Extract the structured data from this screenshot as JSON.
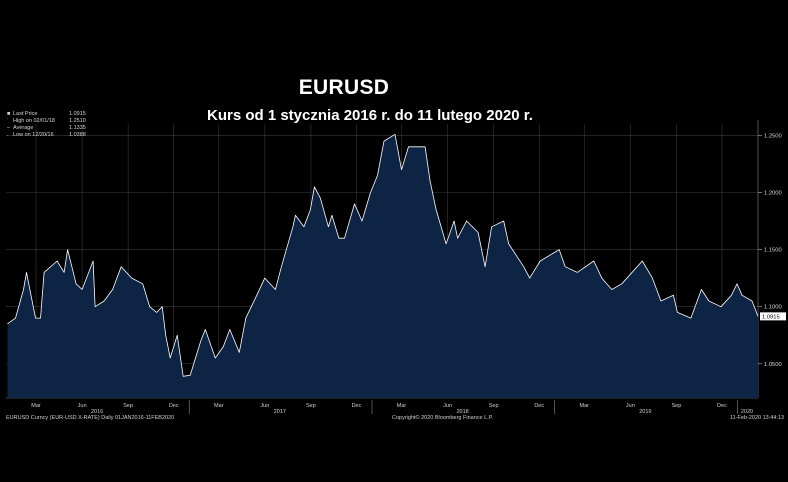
{
  "chart_data": {
    "type": "area",
    "title": "EURUSD",
    "subtitle": "Kurs od 1 stycznia 2016 r.  do 11 lutego 2020 r.",
    "last_price_tag": "1.0915",
    "ylim": [
      1.02,
      1.26
    ],
    "y_ticks": [
      {
        "value": 1.05,
        "label": "1.0500"
      },
      {
        "value": 1.1,
        "label": "1.1000"
      },
      {
        "value": 1.15,
        "label": "1.1500"
      },
      {
        "value": 1.2,
        "label": "1.2000"
      },
      {
        "value": 1.25,
        "label": "1.2500"
      }
    ],
    "x_range": [
      "2016-01-01",
      "2020-02-11"
    ],
    "month_ticks": [
      {
        "date": "2016-03-01",
        "label": "Mar"
      },
      {
        "date": "2016-06-01",
        "label": "Jun"
      },
      {
        "date": "2016-09-01",
        "label": "Sep"
      },
      {
        "date": "2016-12-01",
        "label": "Dec"
      },
      {
        "date": "2017-03-01",
        "label": "Mar"
      },
      {
        "date": "2017-06-01",
        "label": "Jun"
      },
      {
        "date": "2017-09-01",
        "label": "Sep"
      },
      {
        "date": "2017-12-01",
        "label": "Dec"
      },
      {
        "date": "2018-03-01",
        "label": "Mar"
      },
      {
        "date": "2018-06-01",
        "label": "Jun"
      },
      {
        "date": "2018-09-01",
        "label": "Sep"
      },
      {
        "date": "2018-12-01",
        "label": "Dec"
      },
      {
        "date": "2019-03-01",
        "label": "Mar"
      },
      {
        "date": "2019-06-01",
        "label": "Jun"
      },
      {
        "date": "2019-09-01",
        "label": "Sep"
      },
      {
        "date": "2019-12-01",
        "label": "Dec"
      }
    ],
    "year_labels": [
      {
        "date": "2016-07-01",
        "label": "2016"
      },
      {
        "date": "2017-07-01",
        "label": "2017"
      },
      {
        "date": "2018-07-01",
        "label": "2018"
      },
      {
        "date": "2019-07-01",
        "label": "2019"
      },
      {
        "date": "2020-01-20",
        "label": "2020"
      }
    ],
    "series": [
      {
        "name": "EURUSD",
        "points": [
          [
            "2016-01-04",
            1.085
          ],
          [
            "2016-01-20",
            1.09
          ],
          [
            "2016-02-05",
            1.115
          ],
          [
            "2016-02-11",
            1.13
          ],
          [
            "2016-02-29",
            1.09
          ],
          [
            "2016-03-10",
            1.09
          ],
          [
            "2016-03-17",
            1.13
          ],
          [
            "2016-04-12",
            1.14
          ],
          [
            "2016-04-26",
            1.13
          ],
          [
            "2016-05-03",
            1.15
          ],
          [
            "2016-05-20",
            1.12
          ],
          [
            "2016-06-01",
            1.115
          ],
          [
            "2016-06-23",
            1.14
          ],
          [
            "2016-06-27",
            1.1
          ],
          [
            "2016-07-15",
            1.105
          ],
          [
            "2016-08-01",
            1.115
          ],
          [
            "2016-08-18",
            1.135
          ],
          [
            "2016-09-08",
            1.125
          ],
          [
            "2016-09-30",
            1.12
          ],
          [
            "2016-10-14",
            1.1
          ],
          [
            "2016-10-28",
            1.095
          ],
          [
            "2016-11-08",
            1.1
          ],
          [
            "2016-11-15",
            1.075
          ],
          [
            "2016-11-24",
            1.055
          ],
          [
            "2016-12-08",
            1.075
          ],
          [
            "2016-12-20",
            1.039
          ],
          [
            "2017-01-03",
            1.04
          ],
          [
            "2017-01-24",
            1.07
          ],
          [
            "2017-02-02",
            1.08
          ],
          [
            "2017-02-22",
            1.055
          ],
          [
            "2017-03-10",
            1.065
          ],
          [
            "2017-03-23",
            1.08
          ],
          [
            "2017-04-11",
            1.06
          ],
          [
            "2017-04-24",
            1.09
          ],
          [
            "2017-05-16",
            1.11
          ],
          [
            "2017-06-01",
            1.125
          ],
          [
            "2017-06-22",
            1.115
          ],
          [
            "2017-07-04",
            1.135
          ],
          [
            "2017-07-27",
            1.17
          ],
          [
            "2017-08-01",
            1.18
          ],
          [
            "2017-08-18",
            1.17
          ],
          [
            "2017-08-31",
            1.185
          ],
          [
            "2017-09-08",
            1.205
          ],
          [
            "2017-09-20",
            1.195
          ],
          [
            "2017-10-06",
            1.17
          ],
          [
            "2017-10-13",
            1.18
          ],
          [
            "2017-10-27",
            1.16
          ],
          [
            "2017-11-07",
            1.16
          ],
          [
            "2017-11-27",
            1.19
          ],
          [
            "2017-12-12",
            1.175
          ],
          [
            "2017-12-29",
            1.2
          ],
          [
            "2018-01-12",
            1.215
          ],
          [
            "2018-01-25",
            1.245
          ],
          [
            "2018-02-16",
            1.251
          ],
          [
            "2018-03-01",
            1.22
          ],
          [
            "2018-03-15",
            1.24
          ],
          [
            "2018-04-17",
            1.24
          ],
          [
            "2018-04-27",
            1.21
          ],
          [
            "2018-05-09",
            1.185
          ],
          [
            "2018-05-29",
            1.155
          ],
          [
            "2018-06-14",
            1.175
          ],
          [
            "2018-06-21",
            1.16
          ],
          [
            "2018-07-09",
            1.175
          ],
          [
            "2018-08-01",
            1.165
          ],
          [
            "2018-08-15",
            1.135
          ],
          [
            "2018-08-28",
            1.17
          ],
          [
            "2018-09-21",
            1.175
          ],
          [
            "2018-10-01",
            1.155
          ],
          [
            "2018-10-31",
            1.135
          ],
          [
            "2018-11-12",
            1.125
          ],
          [
            "2018-12-03",
            1.14
          ],
          [
            "2019-01-10",
            1.15
          ],
          [
            "2019-01-22",
            1.135
          ],
          [
            "2019-02-15",
            1.13
          ],
          [
            "2019-03-20",
            1.14
          ],
          [
            "2019-04-05",
            1.125
          ],
          [
            "2019-04-25",
            1.115
          ],
          [
            "2019-05-15",
            1.12
          ],
          [
            "2019-06-25",
            1.14
          ],
          [
            "2019-07-15",
            1.125
          ],
          [
            "2019-08-01",
            1.105
          ],
          [
            "2019-08-26",
            1.11
          ],
          [
            "2019-09-03",
            1.095
          ],
          [
            "2019-09-30",
            1.09
          ],
          [
            "2019-10-21",
            1.115
          ],
          [
            "2019-11-05",
            1.105
          ],
          [
            "2019-11-29",
            1.1
          ],
          [
            "2019-12-20",
            1.11
          ],
          [
            "2019-12-31",
            1.12
          ],
          [
            "2020-01-10",
            1.11
          ],
          [
            "2020-01-30",
            1.105
          ],
          [
            "2020-02-11",
            1.0915
          ]
        ]
      }
    ],
    "legend_items": [
      {
        "label": "Last Price",
        "value": "1.0915"
      },
      {
        "label": "High on 02/01/18",
        "value": "1.2510"
      },
      {
        "label": "Average",
        "value": "1.1335"
      },
      {
        "label": "Low on 12/20/16",
        "value": "1.0388"
      }
    ],
    "colors": {
      "fill": "#0e2444",
      "line": "#ffffff",
      "grid": "#3a3a3a",
      "background": "#000000"
    }
  },
  "footer": {
    "left": "EURUSD Curncy (EUR-USD X-RATE)  Daily 01JAN2016-11FEB2020",
    "center": "Copyright© 2020 Bloomberg Finance L.P.",
    "right": "11-Feb-2020 13:44:13"
  }
}
